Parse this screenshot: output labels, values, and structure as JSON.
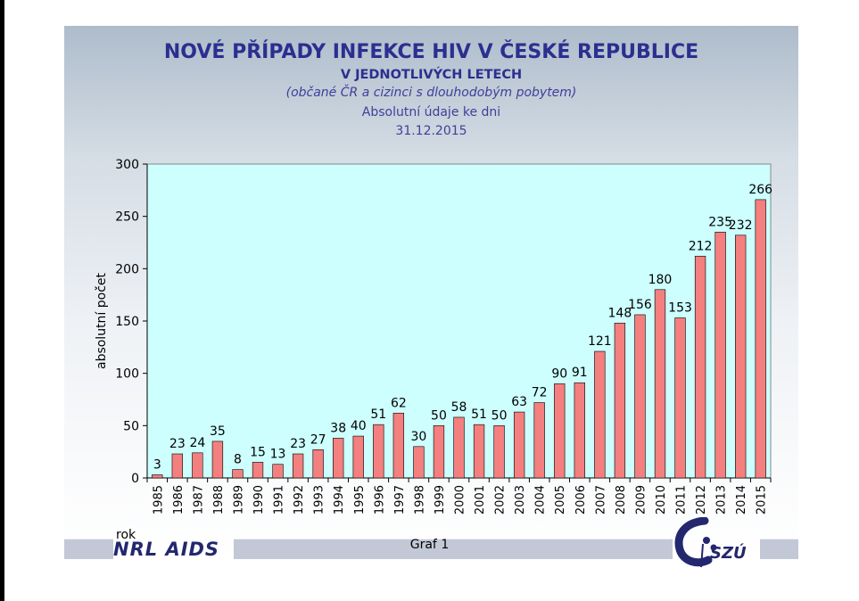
{
  "header": {
    "title": "NOVÉ PŘÍPADY INFEKCE HIV V ČESKÉ REPUBLICE",
    "subtitle": "V JEDNOTLIVÝCH LETECH",
    "note": "(občané ČR a cizinci s dlouhodobým pobytem)",
    "line3": "Absolutní údaje ke dni",
    "line4": "31.12.2015"
  },
  "footer": {
    "x_axis_word": "rok",
    "caption": "Graf 1",
    "left_logo": "NRL AIDS",
    "right_logo": "SZÚ"
  },
  "colors": {
    "bar": "#f47f7f",
    "plot_bg": "#ccfffe",
    "title": "#2b2f8f"
  },
  "chart_data": {
    "type": "bar",
    "title": "NOVÉ PŘÍPADY INFEKCE HIV V ČESKÉ REPUBLICE",
    "xlabel": "rok",
    "ylabel": "absolutní počet",
    "ylim": [
      0,
      300
    ],
    "yticks": [
      0,
      50,
      100,
      150,
      200,
      250,
      300
    ],
    "grid": false,
    "categories": [
      "1985",
      "1986",
      "1987",
      "1988",
      "1989",
      "1990",
      "1991",
      "1992",
      "1993",
      "1994",
      "1995",
      "1996",
      "1997",
      "1998",
      "1999",
      "2000",
      "2001",
      "2002",
      "2003",
      "2004",
      "2005",
      "2006",
      "2007",
      "2008",
      "2009",
      "2010",
      "2011",
      "2012",
      "2013",
      "2014",
      "2015"
    ],
    "values": [
      3,
      23,
      24,
      35,
      8,
      15,
      13,
      23,
      27,
      38,
      40,
      51,
      62,
      30,
      50,
      58,
      51,
      50,
      63,
      72,
      90,
      91,
      121,
      148,
      156,
      180,
      153,
      212,
      235,
      232,
      266
    ]
  }
}
